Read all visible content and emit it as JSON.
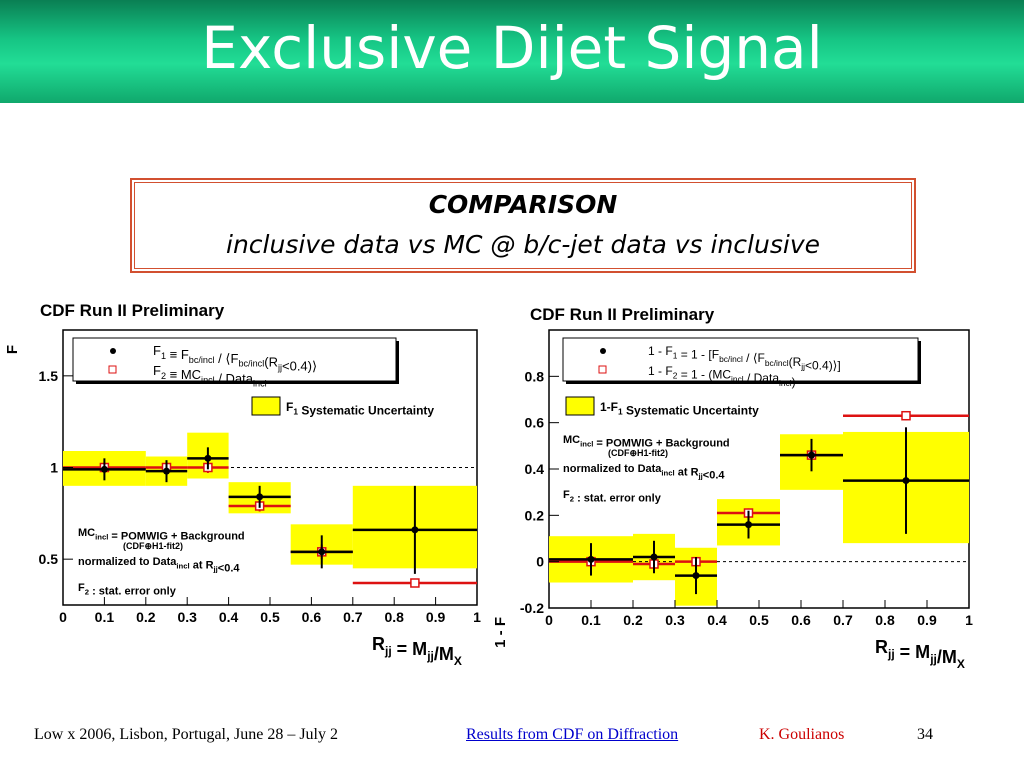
{
  "slide": {
    "title": "Exclusive Dijet Signal",
    "comparison_heading": "COMPARISON",
    "comparison_subtitle": "inclusive data vs MC @ b/c-jet data vs inclusive"
  },
  "footer": {
    "conference": "Low x 2006, Lisbon, Portugal, June 28 – July 2",
    "link": "Results from CDF on Diffraction",
    "author": "K. Goulianos",
    "page": "34"
  },
  "colors": {
    "title_bar": "#16c584",
    "yellow_band": "#ffff00",
    "red_marker": "#dd1111",
    "box_border": "#d25030"
  },
  "chart_data": [
    {
      "type": "scatter",
      "title": "CDF Run II Preliminary",
      "ylabel": "F",
      "xlabel": "R_jj = M_jj/M_X",
      "xlim": [
        0,
        1
      ],
      "ylim": [
        0.25,
        1.75
      ],
      "x_ticks": [
        0,
        0.1,
        0.2,
        0.3,
        0.4,
        0.5,
        0.6,
        0.7,
        0.8,
        0.9,
        1
      ],
      "y_ticks": [
        0.5,
        1,
        1.5
      ],
      "reference_line": 1,
      "legend": [
        {
          "marker": "filled-circle",
          "text": "F1 ≡ Fbc/incl / ⟨Fbc/incl(Rjj<0.4)⟩"
        },
        {
          "marker": "open-square",
          "text": "F2 ≡ MCincl / Dataincl"
        }
      ],
      "band_legend": "F1 Systematic Uncertainty",
      "annotations": [
        "MCincl = POMWIG + Background",
        "(CDF⊕H1-fit2)",
        "normalized to Dataincl at Rjj<0.4",
        "F2 : stat. error only"
      ],
      "series": [
        {
          "name": "F1",
          "points": [
            {
              "xlo": 0.0,
              "xhi": 0.2,
              "y": 0.99,
              "err": 0.06,
              "band": [
                0.9,
                1.09
              ]
            },
            {
              "xlo": 0.2,
              "xhi": 0.3,
              "y": 0.98,
              "err": 0.06,
              "band": [
                0.9,
                1.06
              ]
            },
            {
              "xlo": 0.3,
              "xhi": 0.4,
              "y": 1.05,
              "err": 0.06,
              "band": [
                0.94,
                1.19
              ]
            },
            {
              "xlo": 0.4,
              "xhi": 0.55,
              "y": 0.84,
              "err": 0.06,
              "band": [
                0.75,
                0.92
              ]
            },
            {
              "xlo": 0.55,
              "xhi": 0.7,
              "y": 0.54,
              "err": 0.09,
              "band": [
                0.47,
                0.69
              ]
            },
            {
              "xlo": 0.7,
              "xhi": 1.0,
              "y": 0.66,
              "err": 0.24,
              "band": [
                0.45,
                0.9
              ]
            }
          ]
        },
        {
          "name": "F2",
          "points": [
            {
              "xlo": 0.0,
              "xhi": 0.2,
              "y": 1.0,
              "err": 0.01
            },
            {
              "xlo": 0.2,
              "xhi": 0.3,
              "y": 1.0,
              "err": 0.02
            },
            {
              "xlo": 0.3,
              "xhi": 0.4,
              "y": 1.0,
              "err": 0.03
            },
            {
              "xlo": 0.4,
              "xhi": 0.55,
              "y": 0.79,
              "err": 0.03
            },
            {
              "xlo": 0.55,
              "xhi": 0.7,
              "y": 0.54,
              "err": 0.04
            },
            {
              "xlo": 0.7,
              "xhi": 1.0,
              "y": 0.37,
              "err": 0.02
            }
          ]
        }
      ]
    },
    {
      "type": "scatter",
      "title": "CDF Run II Preliminary",
      "ylabel": "1 - F",
      "xlabel": "R_jj = M_jj/M_X",
      "xlim": [
        0,
        1
      ],
      "ylim": [
        -0.2,
        1.0
      ],
      "x_ticks": [
        0,
        0.1,
        0.2,
        0.3,
        0.4,
        0.5,
        0.6,
        0.7,
        0.8,
        0.9,
        1
      ],
      "y_ticks": [
        -0.2,
        0,
        0.2,
        0.4,
        0.6,
        0.8
      ],
      "reference_line": 0,
      "legend": [
        {
          "marker": "filled-circle",
          "text": "1 - F1 = 1 - [Fbc/incl / ⟨Fbc/incl(Rjj<0.4)⟩]"
        },
        {
          "marker": "open-square",
          "text": "1 - F2 = 1 - (MCincl / Dataincl)"
        }
      ],
      "band_legend": "1-F1 Systematic Uncertainty",
      "annotations": [
        "MCincl = POMWIG + Background",
        "(CDF⊕H1-fit2)",
        "normalized to Dataincl at Rjj<0.4",
        "F2 : stat. error only"
      ],
      "series": [
        {
          "name": "1-F1",
          "points": [
            {
              "xlo": 0.0,
              "xhi": 0.2,
              "y": 0.01,
              "err": 0.07,
              "band": [
                -0.09,
                0.11
              ]
            },
            {
              "xlo": 0.2,
              "xhi": 0.3,
              "y": 0.02,
              "err": 0.07,
              "band": [
                -0.08,
                0.12
              ]
            },
            {
              "xlo": 0.3,
              "xhi": 0.4,
              "y": -0.06,
              "err": 0.08,
              "band": [
                -0.19,
                0.06
              ]
            },
            {
              "xlo": 0.4,
              "xhi": 0.55,
              "y": 0.16,
              "err": 0.06,
              "band": [
                0.07,
                0.27
              ]
            },
            {
              "xlo": 0.55,
              "xhi": 0.7,
              "y": 0.46,
              "err": 0.07,
              "band": [
                0.31,
                0.55
              ]
            },
            {
              "xlo": 0.7,
              "xhi": 1.0,
              "y": 0.35,
              "err": 0.23,
              "band": [
                0.08,
                0.56
              ]
            }
          ]
        },
        {
          "name": "1-F2",
          "points": [
            {
              "xlo": 0.0,
              "xhi": 0.2,
              "y": 0.0,
              "err": 0.01
            },
            {
              "xlo": 0.2,
              "xhi": 0.3,
              "y": -0.01,
              "err": 0.02
            },
            {
              "xlo": 0.3,
              "xhi": 0.4,
              "y": 0.0,
              "err": 0.02
            },
            {
              "xlo": 0.4,
              "xhi": 0.55,
              "y": 0.21,
              "err": 0.02
            },
            {
              "xlo": 0.55,
              "xhi": 0.7,
              "y": 0.46,
              "err": 0.02
            },
            {
              "xlo": 0.7,
              "xhi": 1.0,
              "y": 0.63,
              "err": 0.02
            }
          ]
        }
      ]
    }
  ]
}
